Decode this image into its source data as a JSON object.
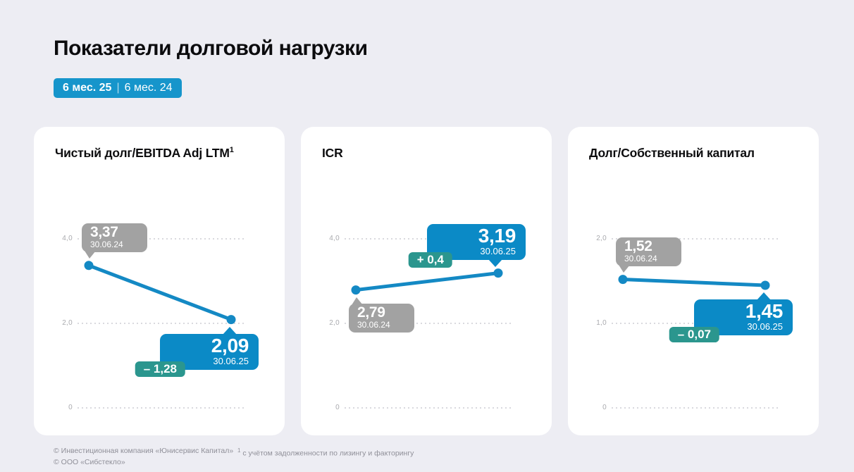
{
  "page": {
    "title": "Показатели долговой нагрузки",
    "period_badge": {
      "current": "6 мес. 25",
      "separator": "|",
      "previous": "6 мес. 24"
    },
    "footer": {
      "copyright_line1": "© Инвестиционная компания «Юнисервис Капитал»",
      "copyright_line2": "© ООО «Сибстекло»",
      "footnote_sup": "1",
      "footnote_text": " с учётом задолженности по лизингу и факторингу"
    }
  },
  "colors": {
    "background": "#EDEDF3",
    "card": "#FFFFFF",
    "line_blue": "#1489C4",
    "tooltip_blue": "#0B8AC6",
    "badge_blue": "#1695CB",
    "delta_teal": "#2B968E",
    "prev_gray": "#A2A2A2",
    "tick_gray": "#A9AAAE",
    "grid_dot": "#D9D9DE",
    "footer_gray": "#8F8F98"
  },
  "chart_data": [
    {
      "type": "line",
      "title": "Чистый долг/EBITDA Adj LTM",
      "title_superscript": "1",
      "x": [
        "30.06.24",
        "30.06.25"
      ],
      "values": [
        3.37,
        2.09
      ],
      "point_labels": [
        "3,37",
        "2,09"
      ],
      "delta_label": "– 1,28",
      "yticks": [
        {
          "value": 4,
          "label": "4,0"
        },
        {
          "value": 2,
          "label": "2,0"
        },
        {
          "value": 0,
          "label": "0"
        }
      ],
      "ylim": [
        0,
        5
      ],
      "grid": "dotted-horizontal",
      "prev_label_position": "above",
      "curr_label_position": "below"
    },
    {
      "type": "line",
      "title": "ICR",
      "title_superscript": "",
      "x": [
        "30.06.24",
        "30.06.25"
      ],
      "values": [
        2.79,
        3.19
      ],
      "point_labels": [
        "2,79",
        "3,19"
      ],
      "delta_label": "+ 0,4",
      "yticks": [
        {
          "value": 4,
          "label": "4,0"
        },
        {
          "value": 2,
          "label": "2,0"
        },
        {
          "value": 0,
          "label": "0"
        }
      ],
      "ylim": [
        0,
        5
      ],
      "grid": "dotted-horizontal",
      "prev_label_position": "below",
      "curr_label_position": "above"
    },
    {
      "type": "line",
      "title": "Долг/Собственный капитал",
      "title_superscript": "",
      "x": [
        "30.06.24",
        "30.06.25"
      ],
      "values": [
        1.52,
        1.45
      ],
      "point_labels": [
        "1,52",
        "1,45"
      ],
      "delta_label": "– 0,07",
      "yticks": [
        {
          "value": 2,
          "label": "2,0"
        },
        {
          "value": 1,
          "label": "1,0"
        },
        {
          "value": 0,
          "label": "0"
        }
      ],
      "ylim": [
        0,
        2.5
      ],
      "grid": "dotted-horizontal",
      "prev_label_position": "above",
      "curr_label_position": "below"
    }
  ]
}
